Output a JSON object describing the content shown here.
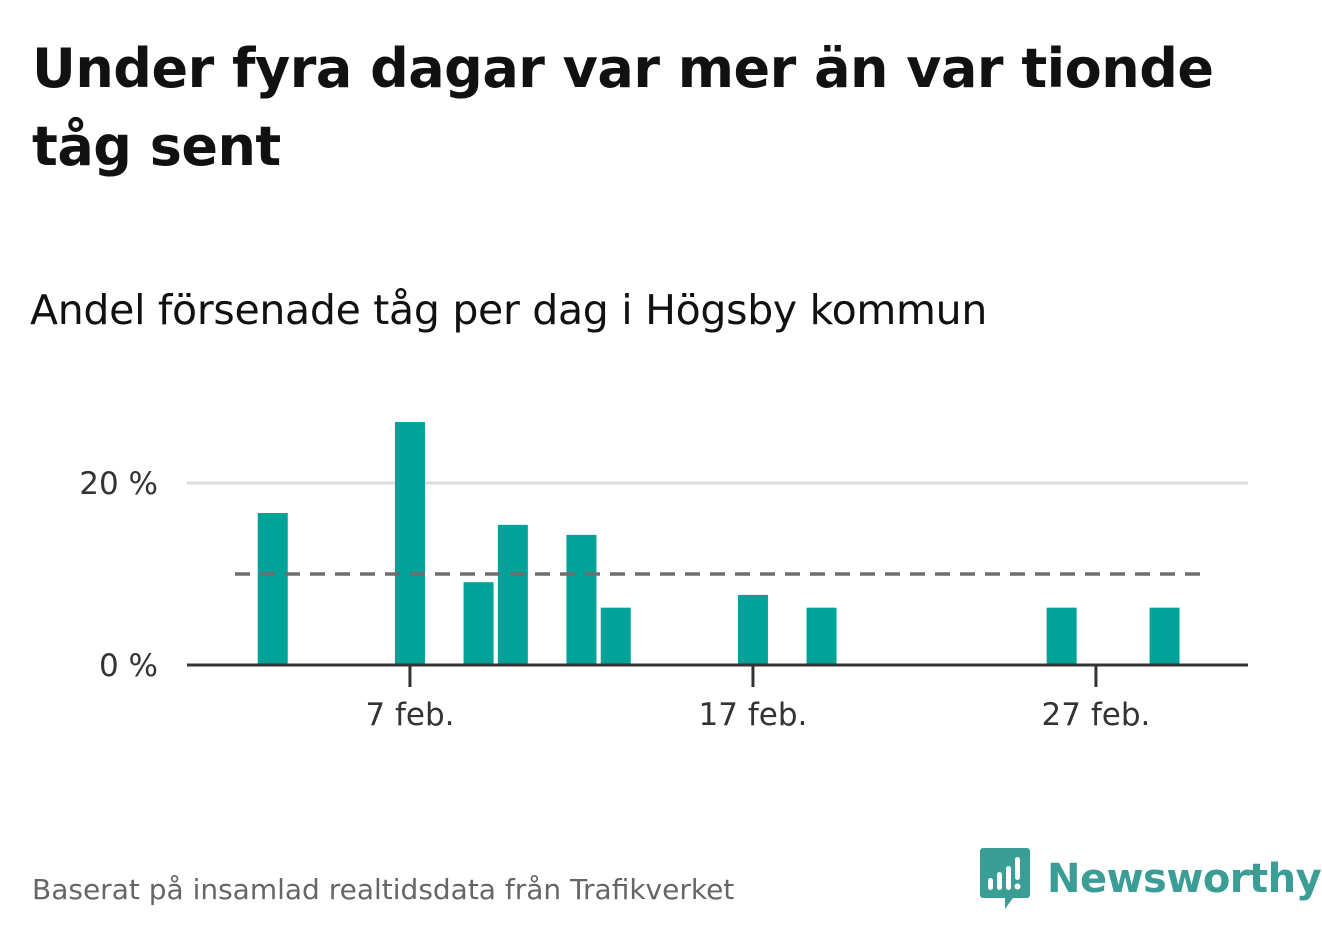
{
  "title": "Under fyra dagar var mer än var tionde tåg sent",
  "subtitle": "Andel försenade tåg per dag i Högsby kommun",
  "footer": "Baserat på insamlad realtidsdata från Trafikverket",
  "brand": {
    "name": "Newsworthy",
    "icon": "newsworthy-logo-icon",
    "color": "#3a9d96"
  },
  "colors": {
    "bar": "#00a398",
    "reference_line": "#6e6e6e",
    "gridline": "#dcdcdc",
    "axis": "#333333"
  },
  "chart_data": {
    "type": "bar",
    "title": "",
    "xlabel": "",
    "ylabel": "",
    "x_range": [
      "2019-02-01",
      "2019-02-28"
    ],
    "ylim": [
      0,
      29
    ],
    "yticks": [
      {
        "value": 0,
        "label": "0 %"
      },
      {
        "value": 20,
        "label": "20 %"
      }
    ],
    "xticks": [
      {
        "date": "2019-02-07",
        "label": "7 feb."
      },
      {
        "date": "2019-02-17",
        "label": "17 feb."
      },
      {
        "date": "2019-02-27",
        "label": "27 feb."
      }
    ],
    "grid": true,
    "reference_line": {
      "value": 10,
      "style": "dashed"
    },
    "series": [
      {
        "points": [
          {
            "date": "2019-02-03",
            "value": 16.7
          },
          {
            "date": "2019-02-07",
            "value": 26.7
          },
          {
            "date": "2019-02-08",
            "value": 0
          },
          {
            "date": "2019-02-09",
            "value": 9.1
          },
          {
            "date": "2019-02-10",
            "value": 15.4
          },
          {
            "date": "2019-02-12",
            "value": 14.3
          },
          {
            "date": "2019-02-13",
            "value": 6.3
          },
          {
            "date": "2019-02-17",
            "value": 7.7
          },
          {
            "date": "2019-02-19",
            "value": 6.3
          },
          {
            "date": "2019-02-26",
            "value": 6.3
          },
          {
            "date": "2019-02-29",
            "value": 6.3
          }
        ]
      }
    ]
  }
}
